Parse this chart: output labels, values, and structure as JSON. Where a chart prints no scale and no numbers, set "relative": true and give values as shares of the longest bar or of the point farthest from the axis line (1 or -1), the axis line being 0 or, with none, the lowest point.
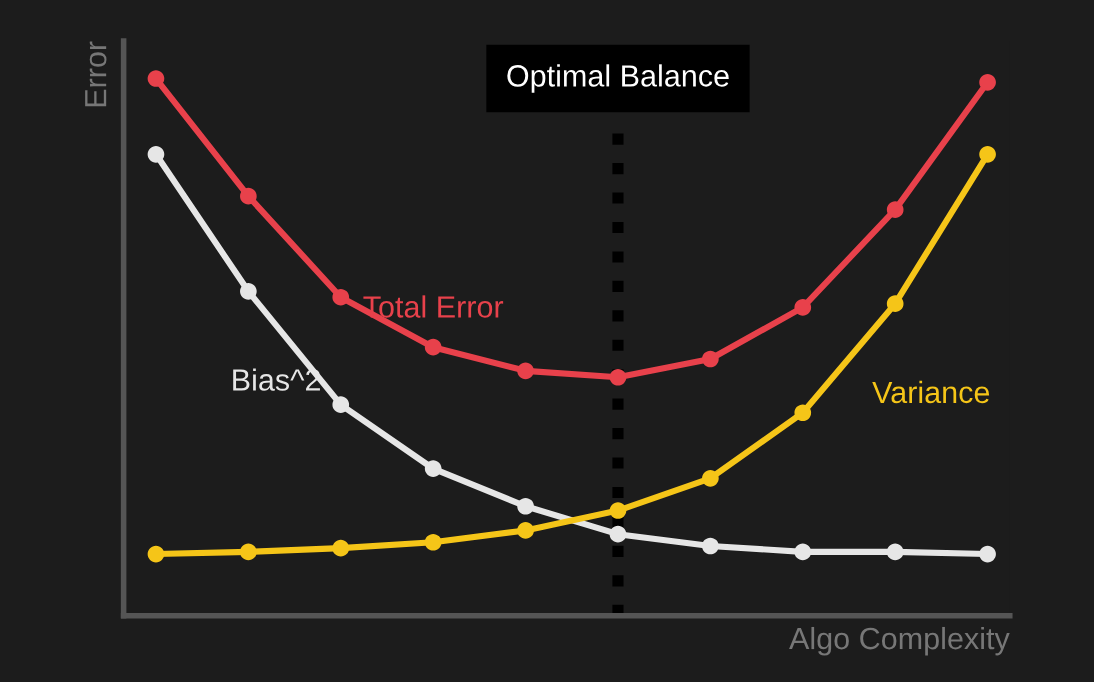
{
  "chart_data": {
    "type": "line",
    "relative": true,
    "xlabel": "Algo Complexity",
    "ylabel": "Error",
    "categories": [
      null,
      null,
      null,
      null,
      null,
      null,
      null,
      null,
      null,
      null
    ],
    "series": [
      {
        "name": "Total Error",
        "color": "#e8414b",
        "values": [
          1,
          0.781,
          0.593,
          0.5,
          0.456,
          0.444,
          0.478,
          0.574,
          0.756,
          0.993
        ]
      },
      {
        "name": "Bias^2",
        "color": "#e6e6e6",
        "values": [
          0.859,
          0.604,
          0.393,
          0.274,
          0.204,
          0.152,
          0.13,
          0.119,
          0.119,
          0.115
        ]
      },
      {
        "name": "Variance",
        "color": "#f5c518",
        "values": [
          0.115,
          0.119,
          0.126,
          0.137,
          0.159,
          0.196,
          0.256,
          0.378,
          0.581,
          0.859
        ]
      }
    ],
    "annotations": [
      "Optimal Balance"
    ],
    "marker": "circle",
    "line_style": "solid",
    "legend": false
  }
}
